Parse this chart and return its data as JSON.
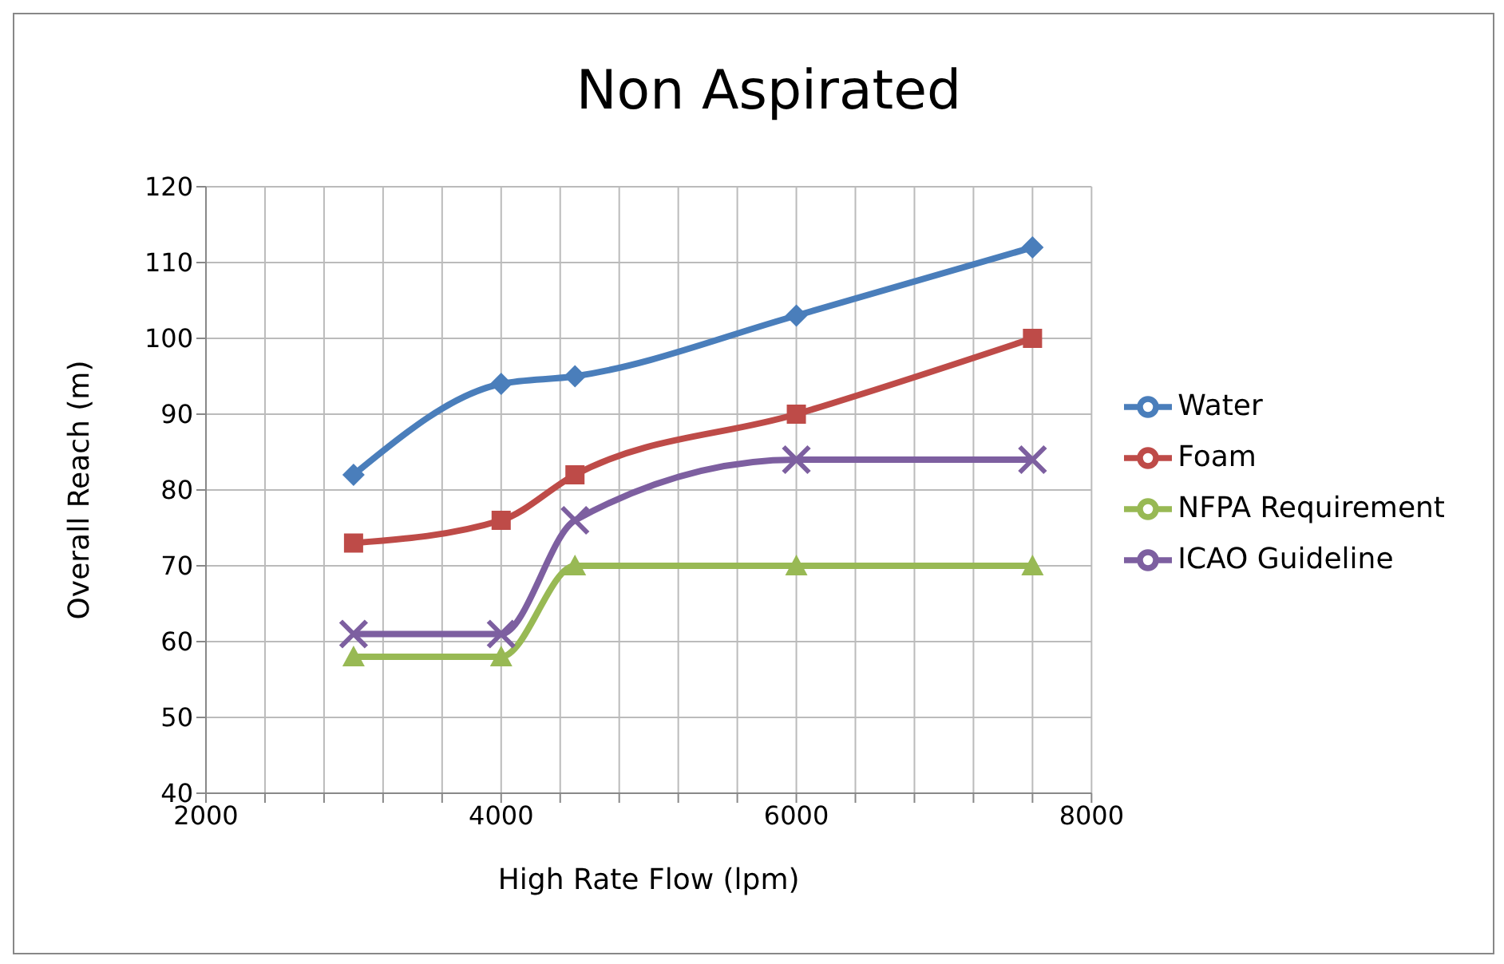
{
  "chart_data": {
    "type": "line",
    "title": "Non Aspirated",
    "xlabel": "High Rate Flow (lpm)",
    "ylabel": "Overall Reach (m)",
    "x": [
      3000,
      4000,
      4500,
      6000,
      7600
    ],
    "series": [
      {
        "name": "Water",
        "color": "#4a7ebb",
        "marker": "diamond",
        "values": [
          82,
          94,
          95,
          103,
          112
        ]
      },
      {
        "name": "Foam",
        "color": "#be4b48",
        "marker": "square",
        "values": [
          73,
          76,
          82,
          90,
          100
        ]
      },
      {
        "name": "NFPA Requirement",
        "color": "#98b954",
        "marker": "triangle",
        "values": [
          58,
          58,
          70,
          70,
          70
        ]
      },
      {
        "name": "ICAO Guideline",
        "color": "#7d5fa0",
        "marker": "cross",
        "values": [
          61,
          61,
          76,
          84,
          84
        ]
      }
    ],
    "xlim": [
      2000,
      8000
    ],
    "xticks": [
      2000,
      {
        "value": 2400,
        "label": null
      },
      {
        "value": 2800,
        "label": null
      },
      {
        "value": 3200,
        "label": null
      },
      {
        "value": 3600,
        "label": null
      },
      4000,
      {
        "value": 4400,
        "label": null
      },
      {
        "value": 4800,
        "label": null
      },
      {
        "value": 5200,
        "label": null
      },
      {
        "value": 5600,
        "label": null
      },
      6000,
      {
        "value": 6400,
        "label": null
      },
      {
        "value": 6800,
        "label": null
      },
      {
        "value": 7200,
        "label": null
      },
      {
        "value": 7600,
        "label": null
      },
      8000
    ],
    "ylim": [
      40,
      120
    ],
    "yticks": [
      40,
      50,
      60,
      70,
      80,
      90,
      100,
      110,
      120
    ],
    "grid": true,
    "legend": "right"
  }
}
